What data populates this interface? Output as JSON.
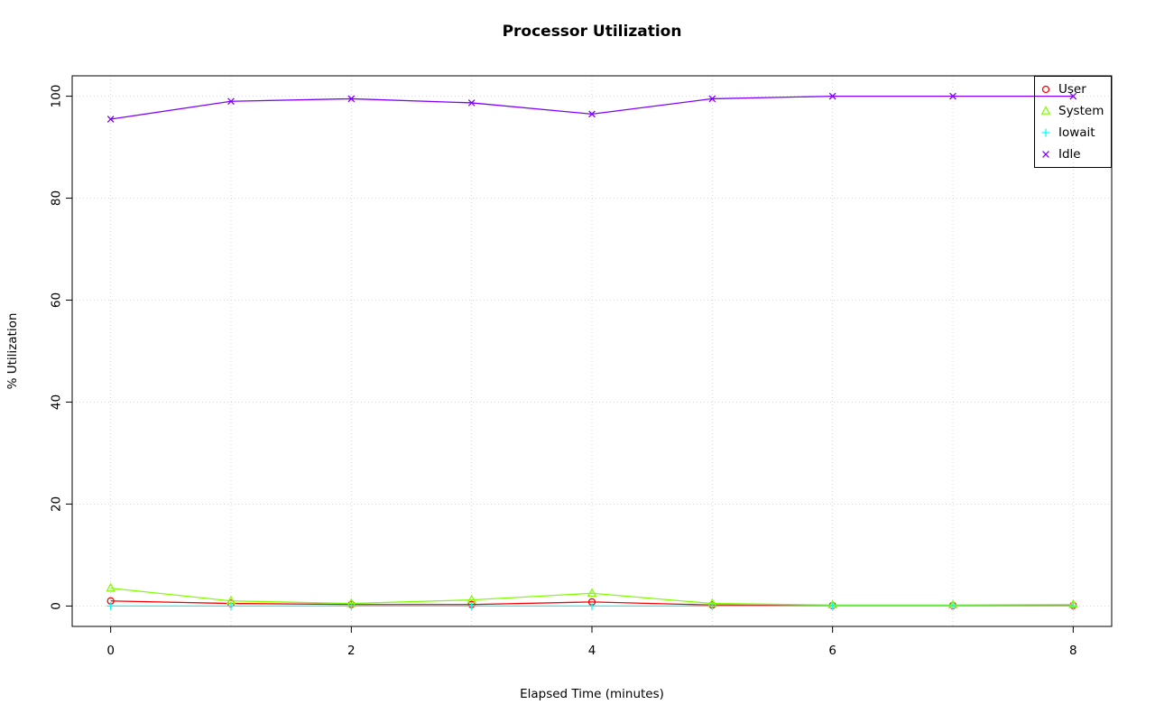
{
  "chart_data": {
    "type": "line",
    "title": "Processor Utilization",
    "xlabel": "Elapsed Time (minutes)",
    "ylabel": "% Utilization",
    "x": [
      0,
      1,
      2,
      3,
      4,
      5,
      6,
      7,
      8
    ],
    "xlim": [
      0,
      8
    ],
    "ylim": [
      0,
      100
    ],
    "x_ticks": [
      0,
      2,
      4,
      6,
      8
    ],
    "y_ticks": [
      0,
      20,
      40,
      60,
      80,
      100
    ],
    "grid_x": [
      0,
      1,
      2,
      3,
      4,
      5,
      6,
      7,
      8
    ],
    "grid": true,
    "grid_style": "dotted",
    "grid_color": "#d6d6d6",
    "legend_position": "top-right",
    "background": "#ffffff",
    "series": [
      {
        "name": "User",
        "color": "#FF0000",
        "marker": "circle",
        "values": [
          1.0,
          0.5,
          0.3,
          0.3,
          0.8,
          0.2,
          0.1,
          0.1,
          0.1
        ]
      },
      {
        "name": "System",
        "color": "#80FF00",
        "marker": "triangle",
        "values": [
          3.5,
          1.0,
          0.5,
          1.2,
          2.5,
          0.5,
          0.2,
          0.2,
          0.3
        ]
      },
      {
        "name": "Iowait",
        "color": "#00FFFF",
        "marker": "plus",
        "values": [
          0,
          0,
          0,
          0,
          0,
          0,
          0,
          0,
          0
        ]
      },
      {
        "name": "Idle",
        "color": "#8000FF",
        "marker": "x",
        "values": [
          95.5,
          99.0,
          99.5,
          98.7,
          96.5,
          99.5,
          100.0,
          100.0,
          100.0
        ]
      }
    ]
  }
}
